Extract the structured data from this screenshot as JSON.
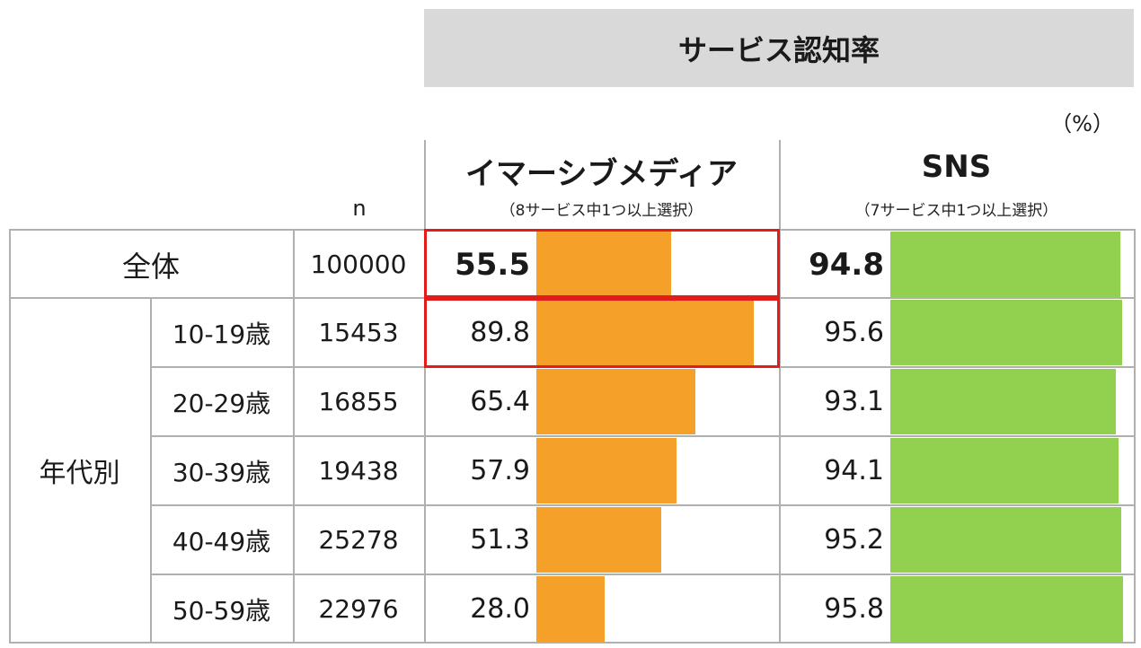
{
  "title": "サービス認知率",
  "unit": "（%）",
  "n_header": "n",
  "columns": [
    {
      "title": "イマーシブメディア",
      "subtitle": "（8サービス中1つ以上選択）",
      "color": "#f5a028"
    },
    {
      "title": "SNS",
      "subtitle": "（7サービス中1つ以上選択）",
      "color": "#92d050"
    }
  ],
  "group_label": "年代別",
  "highlight_color": "#e31b1b",
  "chart_data": {
    "type": "bar",
    "title": "サービス認知率",
    "categories": [
      "全体",
      "10-19歳",
      "20-29歳",
      "30-39歳",
      "40-49歳",
      "50-59歳"
    ],
    "n": [
      "100000",
      "15453",
      "16855",
      "19438",
      "25278",
      "22976"
    ],
    "series": [
      {
        "name": "イマーシブメディア",
        "values": [
          "55.5",
          "89.8",
          "65.4",
          "57.9",
          "51.3",
          "28.0"
        ]
      },
      {
        "name": "SNS",
        "values": [
          "94.8",
          "95.6",
          "93.1",
          "94.1",
          "95.2",
          "95.8"
        ]
      }
    ],
    "xlim": [
      0,
      100
    ]
  }
}
